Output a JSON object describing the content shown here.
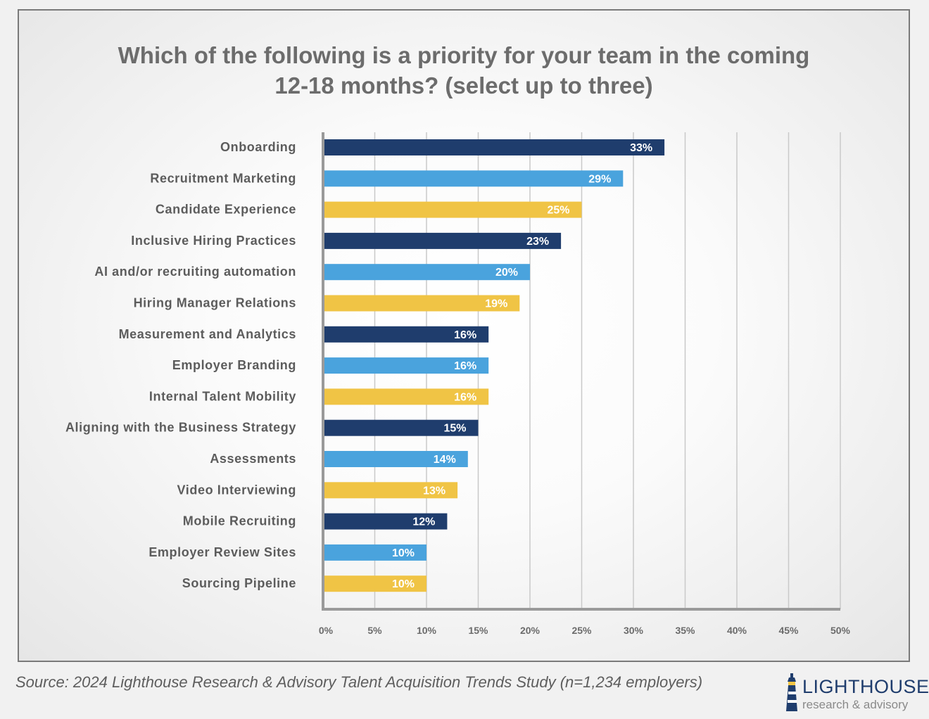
{
  "chart_data": {
    "type": "bar",
    "orientation": "horizontal",
    "title_lines": [
      "Which of the following is a priority for your team in the coming",
      "12-18 months? (select up to three)"
    ],
    "categories": [
      "Onboarding",
      "Recruitment Marketing",
      "Candidate Experience",
      "Inclusive Hiring Practices",
      "AI and/or recruiting automation",
      "Hiring Manager Relations",
      "Measurement and Analytics",
      "Employer Branding",
      "Internal Talent Mobility",
      "Aligning with the Business Strategy",
      "Assessments",
      "Video Interviewing",
      "Mobile Recruiting",
      "Employer Review Sites",
      "Sourcing Pipeline"
    ],
    "values": [
      33,
      29,
      25,
      23,
      20,
      19,
      16,
      16,
      16,
      15,
      14,
      13,
      12,
      10,
      10
    ],
    "value_labels": [
      "33%",
      "29%",
      "25%",
      "23%",
      "20%",
      "19%",
      "16%",
      "16%",
      "16%",
      "15%",
      "14%",
      "13%",
      "12%",
      "10%",
      "10%"
    ],
    "x_ticks": [
      "0%",
      "5%",
      "10%",
      "15%",
      "20%",
      "25%",
      "30%",
      "35%",
      "40%",
      "45%",
      "50%"
    ],
    "xlim": [
      0,
      50
    ],
    "grid": true,
    "colors": [
      "#1f3d6d",
      "#4aa3dd",
      "#f0c445"
    ],
    "color_cycle": "dark-blue, light-blue, yellow repeating",
    "xlabel": "",
    "ylabel": ""
  },
  "source": "Source: 2024 Lighthouse Research & Advisory Talent Acquisition Trends Study (n=1,234 employers)",
  "logo": {
    "name": "LIGHTHOUSE",
    "tagline": "research & advisory",
    "icon": "lighthouse-icon"
  }
}
